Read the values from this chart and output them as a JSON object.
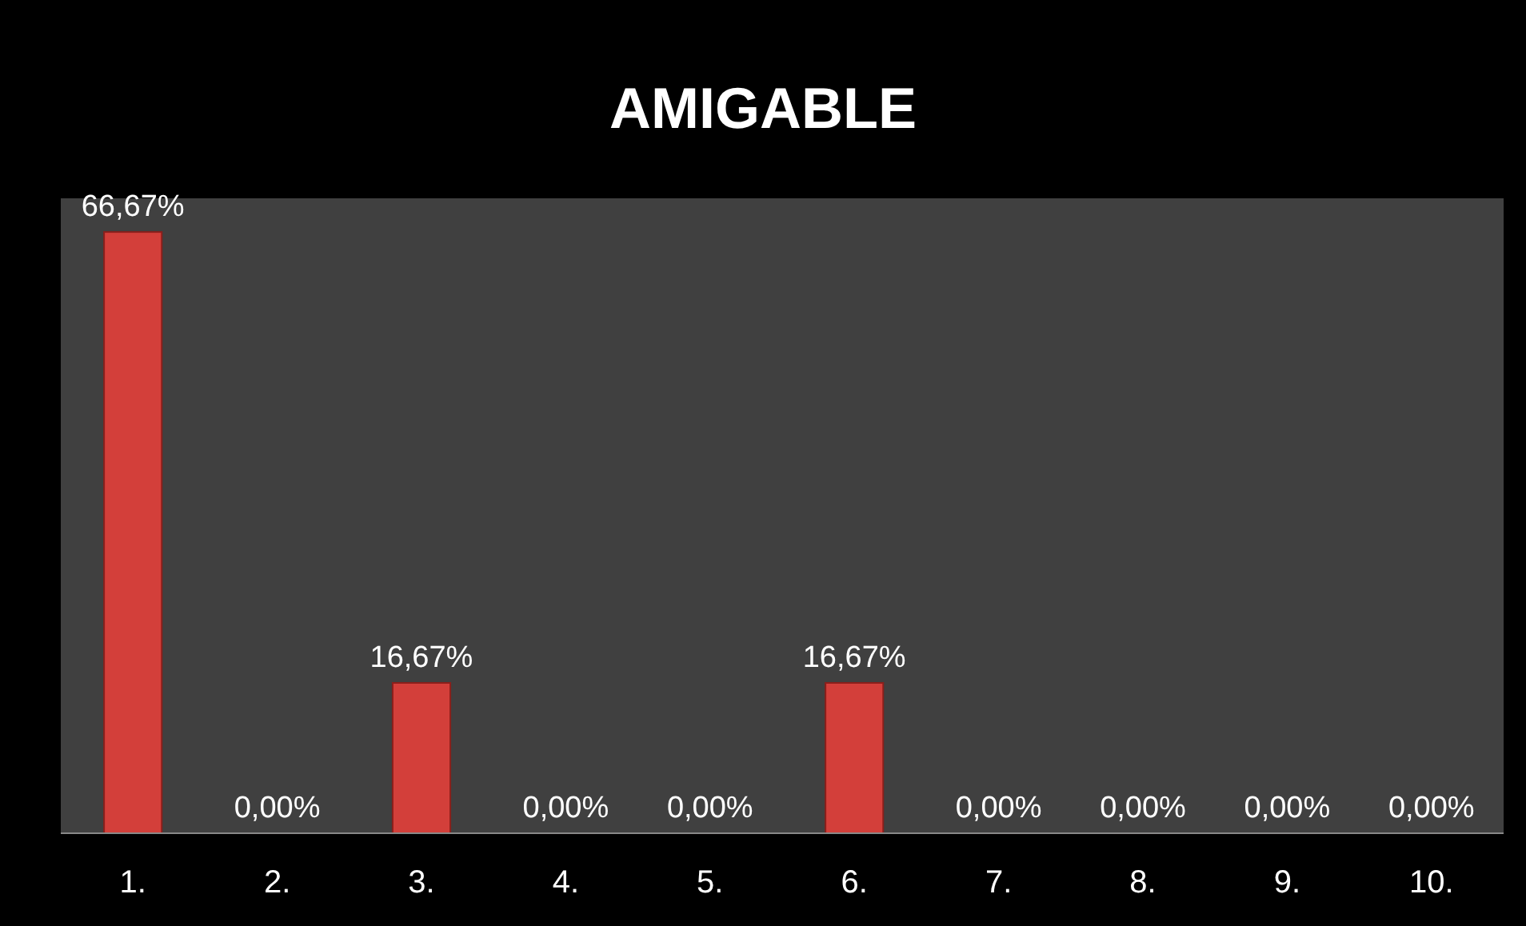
{
  "chart_data": {
    "type": "bar",
    "title": "AMIGABLE",
    "categories": [
      "1.",
      "2.",
      "3.",
      "4.",
      "5.",
      "6.",
      "7.",
      "8.",
      "9.",
      "10."
    ],
    "values": [
      66.67,
      0,
      16.67,
      0,
      0,
      16.67,
      0,
      0,
      0,
      0
    ],
    "value_labels": [
      "66,67%",
      "0,00%",
      "16,67%",
      "0,00%",
      "0,00%",
      "16,67%",
      "0,00%",
      "0,00%",
      "0,00%",
      "0,00%"
    ],
    "color": "#d33f3a"
  }
}
